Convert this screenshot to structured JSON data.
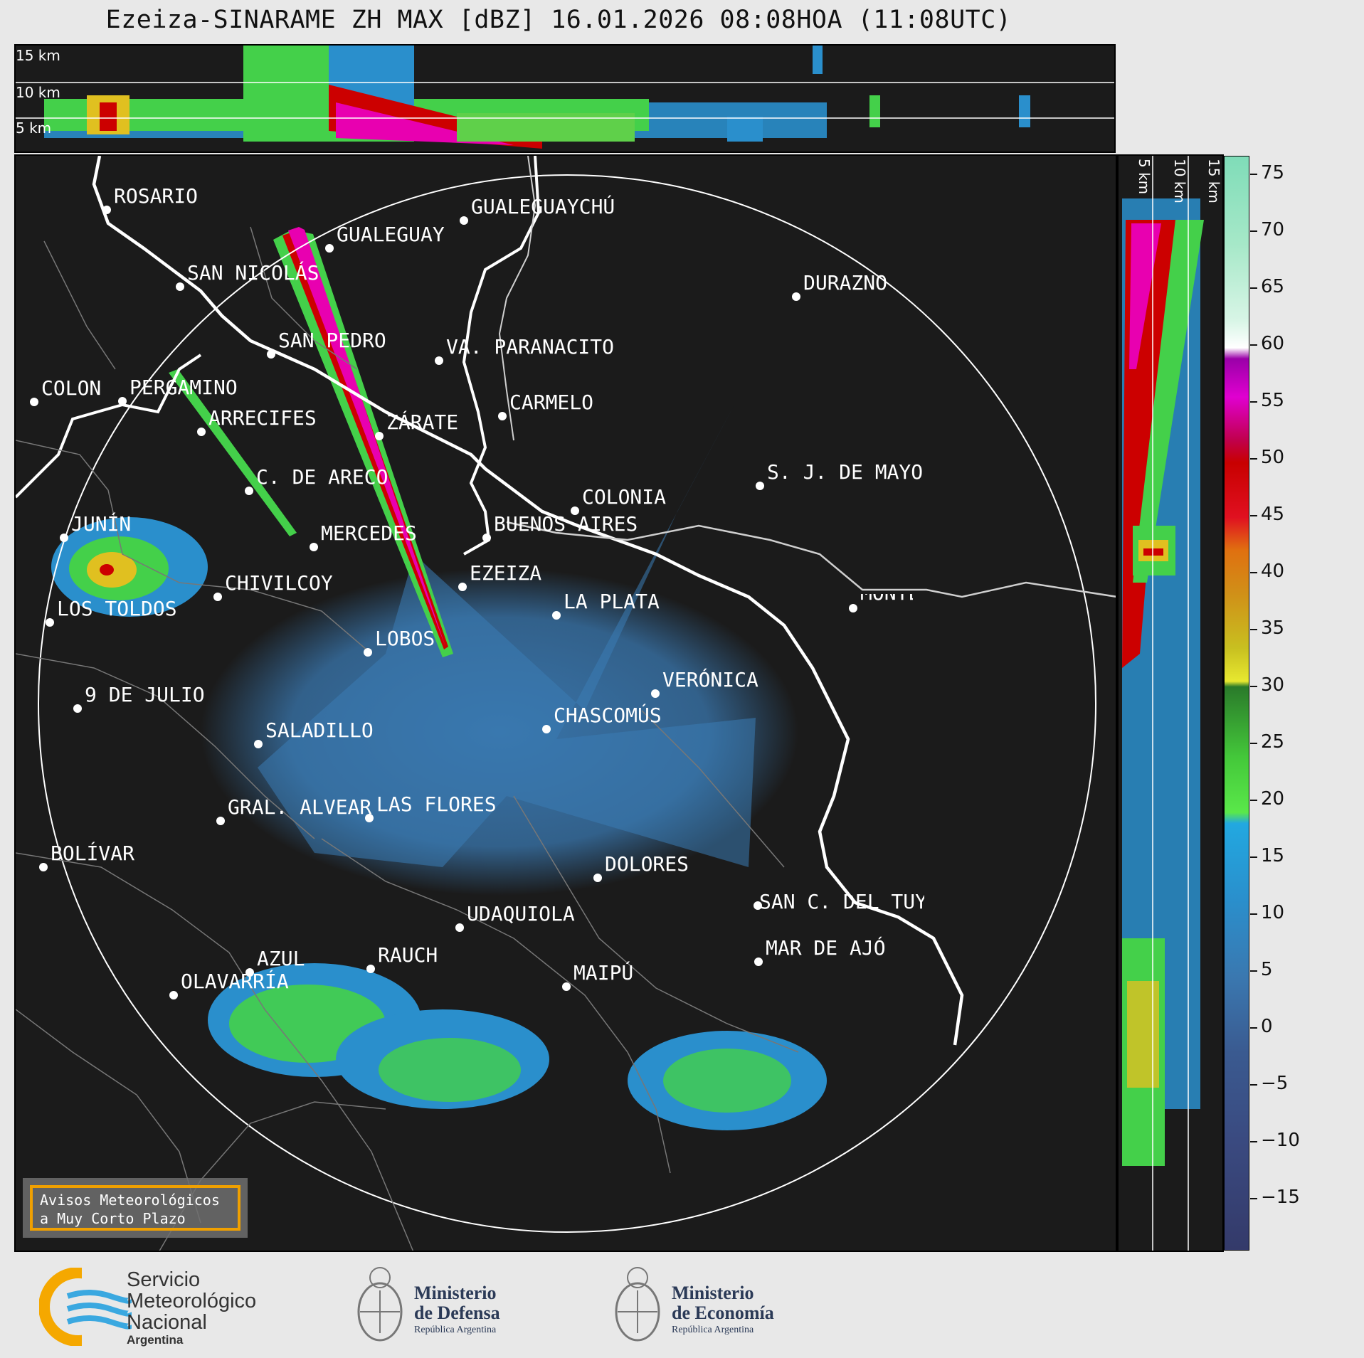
{
  "title": "Ezeiza-SINARAME ZH MAX [dBZ] 16.01.2026 08:08HOA (11:08UTC)",
  "top_panel": {
    "labels": [
      "15 km",
      "10 km",
      "5 km"
    ]
  },
  "right_panel": {
    "labels": [
      "5 km",
      "10 km",
      "15 km"
    ]
  },
  "colorbar": {
    "ticks": [
      "75",
      "70",
      "65",
      "60",
      "55",
      "50",
      "45",
      "40",
      "35",
      "30",
      "25",
      "20",
      "15",
      "10",
      "5",
      "0",
      "−5",
      "−10",
      "−15"
    ]
  },
  "cities": [
    "ROSARIO",
    "GUALEGUAYCHÚ",
    "GUALEGUAY",
    "SAN NICOLÁS",
    "DURAZNO",
    "SAN PEDRO",
    "VA. PARANACITO",
    "COLON",
    "PERGAMINO",
    "CARMELO",
    "ARRECIFES",
    "ZÁRATE",
    "S. J. DE MAYO",
    "C. DE ARECO",
    "COLONIA",
    "BUENOS AIRES",
    "JUNÍN",
    "MERCEDES",
    "EZEIZA",
    "MONTEVIDEO",
    "CHIVILCOY",
    "LA PLATA",
    "LOS TOLDOS",
    "LOBOS",
    "VERÓNICA",
    "9 DE JULIO",
    "CHASCOMÚS",
    "SALADILLO",
    "GRAL. ALVEAR",
    "LAS FLORES",
    "BOLÍVAR",
    "DOLORES",
    "SAN C. DEL TUYÚ",
    "UDAQUIOLA",
    "MAR DE AJÓ",
    "RAUCH",
    "AZUL",
    "OLAVARRÍA",
    "MAIPÚ"
  ],
  "aviso": {
    "line1": "Avisos Meteorológicos",
    "line2": "a Muy Corto Plazo"
  },
  "footer": {
    "smn": {
      "line1": "Servicio",
      "line2": "Meteorológico",
      "line3": "Nacional",
      "line4": "Argentina"
    },
    "defensa": {
      "line1": "Ministerio",
      "line2": "de Defensa",
      "line3": "República Argentina"
    },
    "economia": {
      "line1": "Ministerio",
      "line2": "de Economía",
      "line3": "República Argentina"
    }
  }
}
